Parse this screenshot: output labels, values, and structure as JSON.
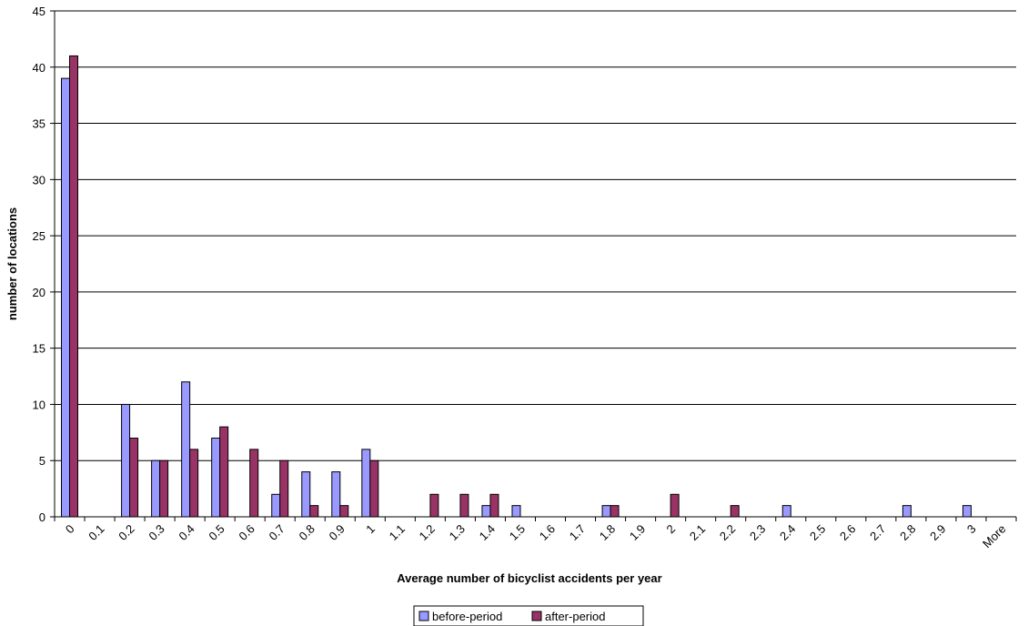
{
  "chart_data": {
    "type": "bar",
    "xlabel": "Average number of bicyclist accidents per year",
    "ylabel": "number of locations",
    "ylim": [
      0,
      45
    ],
    "yticks": [
      "0",
      "5",
      "10",
      "15",
      "20",
      "25",
      "30",
      "35",
      "40",
      "45"
    ],
    "grid": true,
    "legend_position": "bottom",
    "categories": [
      "0",
      "0.1",
      "0.2",
      "0.3",
      "0.4",
      "0.5",
      "0.6",
      "0.7",
      "0.8",
      "0.9",
      "1",
      "1.1",
      "1.2",
      "1.3",
      "1.4",
      "1.5",
      "1.6",
      "1.7",
      "1.8",
      "1.9",
      "2",
      "2.1",
      "2.2",
      "2.3",
      "2.4",
      "2.5",
      "2.6",
      "2.7",
      "2.8",
      "2.9",
      "3",
      "More"
    ],
    "series": [
      {
        "name": "before-period",
        "color": "#9999ff",
        "values": [
          39,
          0,
          10,
          5,
          12,
          7,
          0,
          2,
          4,
          4,
          6,
          0,
          0,
          0,
          1,
          1,
          0,
          0,
          1,
          0,
          0,
          0,
          0,
          0,
          1,
          0,
          0,
          0,
          1,
          0,
          1,
          0
        ]
      },
      {
        "name": "after-period",
        "color": "#993366",
        "values": [
          41,
          0,
          7,
          5,
          6,
          8,
          6,
          5,
          1,
          1,
          5,
          0,
          2,
          2,
          2,
          0,
          0,
          0,
          1,
          0,
          2,
          0,
          1,
          0,
          0,
          0,
          0,
          0,
          0,
          0,
          0,
          0
        ]
      }
    ]
  }
}
